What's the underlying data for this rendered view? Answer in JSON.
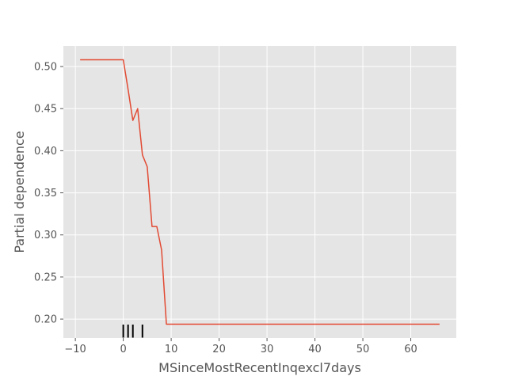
{
  "chart_data": {
    "type": "line",
    "title": "",
    "xlabel": "MSinceMostRecentInqexcl7days",
    "ylabel": "Partial dependence",
    "xlim": [
      -12.5,
      69.5
    ],
    "ylim": [
      0.1775,
      0.5245
    ],
    "xticks": [
      -10,
      0,
      10,
      20,
      30,
      40,
      50,
      60
    ],
    "yticks": [
      0.2,
      0.25,
      0.3,
      0.35,
      0.4,
      0.45,
      0.5
    ],
    "xtick_labels": [
      "−10",
      "0",
      "10",
      "20",
      "30",
      "40",
      "50",
      "60"
    ],
    "ytick_labels": [
      "0.20",
      "0.25",
      "0.30",
      "0.35",
      "0.40",
      "0.45",
      "0.50"
    ],
    "grid": true,
    "style": "ggplot",
    "series": [
      {
        "color": "#E24A33",
        "x": [
          -9,
          0,
          1,
          2,
          3,
          4,
          5,
          6,
          7,
          8,
          9,
          66
        ],
        "y": [
          0.508,
          0.508,
          0.473,
          0.436,
          0.45,
          0.395,
          0.381,
          0.31,
          0.31,
          0.282,
          0.194,
          0.194
        ]
      }
    ],
    "rug": {
      "color": "#000000",
      "x": [
        0,
        1,
        2,
        4
      ]
    }
  }
}
